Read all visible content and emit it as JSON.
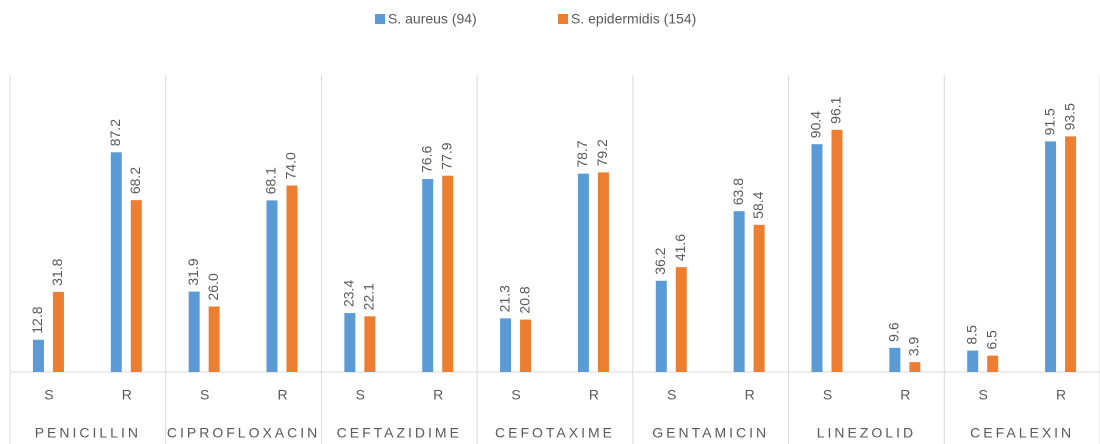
{
  "chart_data": {
    "type": "bar",
    "groups": [
      "PENICILLIN",
      "CIPROFLOXACIN",
      "CEFTAZIDIME",
      "CEFOTAXIME",
      "GENTAMICIN",
      "LINEZOLID",
      "CEFALEXIN"
    ],
    "categories": [
      "S",
      "R",
      "S",
      "R",
      "S",
      "R",
      "S",
      "R",
      "S",
      "R",
      "S",
      "R",
      "S",
      "R"
    ],
    "series": [
      {
        "name": "S. aureus (94)",
        "color": "#5b9bd5",
        "values": [
          12.8,
          87.2,
          31.9,
          68.1,
          23.4,
          76.6,
          21.3,
          78.7,
          36.2,
          63.8,
          90.4,
          9.6,
          8.5,
          91.5
        ],
        "value_labels": [
          "12.8",
          "87.2",
          "31.9",
          "68.1",
          "23.4",
          "76.6",
          "21.3",
          "78.7",
          "36.2",
          "63.8",
          "90.4",
          "9.6",
          "8.5",
          "91.5"
        ]
      },
      {
        "name": "S. epidermidis (154)",
        "color": "#ed7d31",
        "values": [
          31.8,
          68.2,
          26.0,
          74.0,
          22.1,
          77.9,
          20.8,
          79.2,
          41.6,
          58.4,
          96.1,
          3.9,
          6.5,
          93.5
        ],
        "value_labels": [
          "31.8",
          "68.2",
          "26.0",
          "74.0",
          "22.1",
          "77.9",
          "20.8",
          "79.2",
          "41.6",
          "58.4",
          "96.1",
          "3.9",
          "6.5",
          "93.5"
        ]
      }
    ],
    "ylim": [
      0,
      100
    ],
    "legend": "top"
  }
}
